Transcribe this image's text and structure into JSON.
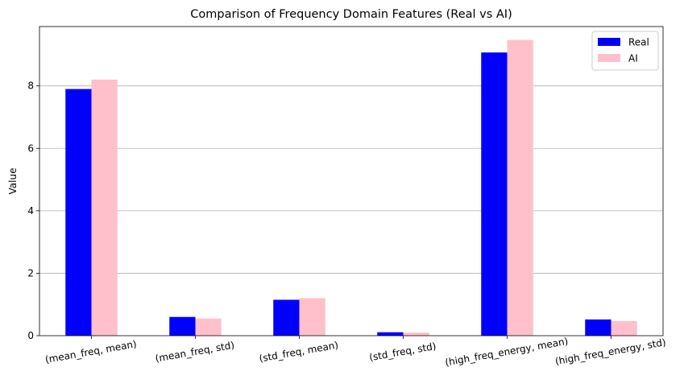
{
  "chart_data": {
    "type": "bar",
    "title": "Comparison of Frequency Domain Features (Real vs AI)",
    "xlabel": "",
    "ylabel": "Value",
    "categories": [
      "(mean_freq, mean)",
      "(mean_freq, std)",
      "(std_freq, mean)",
      "(std_freq, std)",
      "(high_freq_energy, mean)",
      "(high_freq_energy, std)"
    ],
    "series": [
      {
        "name": "Real",
        "color": "#0000ff",
        "values": [
          7.9,
          0.6,
          1.15,
          0.11,
          9.07,
          0.52
        ]
      },
      {
        "name": "AI",
        "color": "#ffc0cb",
        "values": [
          8.2,
          0.55,
          1.2,
          0.1,
          9.47,
          0.47
        ]
      }
    ],
    "ylim": [
      0,
      9.9
    ],
    "yticks": [
      "0",
      "2",
      "4",
      "6",
      "8"
    ],
    "grid": "y",
    "legend_position": "top-right",
    "xtick_rotation_deg": -10
  }
}
